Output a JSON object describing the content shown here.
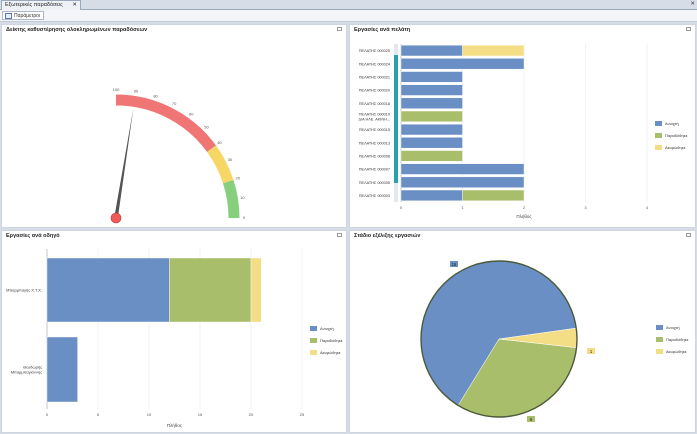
{
  "tab": {
    "title": "Εξωτερικές παραδόσεις",
    "close": "✕"
  },
  "toolbar": {
    "params_label": "Παράμετροι"
  },
  "gauge": {
    "title": "Δείκτης καθυστέρησης ολοκληρωμένων παραδόσεων",
    "ticks": [
      "100",
      "90",
      "80",
      "70",
      "60",
      "50",
      "40",
      "30",
      "20",
      "10",
      "0"
    ],
    "value": 90,
    "bands": [
      {
        "from": 0,
        "to": 20,
        "color": "#86cf7c"
      },
      {
        "from": 20,
        "to": 40,
        "color": "#f6d766"
      },
      {
        "from": 40,
        "to": 100,
        "color": "#f07575"
      }
    ]
  },
  "colors": {
    "open": "#6a8fc4",
    "delivered": "#a9be6a",
    "cancelled": "#f3de86"
  },
  "legend": [
    "Ανοιχτή",
    "Παραδόθηκε",
    "Ακυρώθηκε"
  ],
  "customers": {
    "title": "Εργασίες ανά πελάτη",
    "xlabel": "Πλήθος",
    "chart_data": {
      "type": "bar",
      "categories": [
        "ΠΕΛΑΤΗΣ 000025",
        "ΠΕΛΑΤΗΣ 000024",
        "ΠΕΛΑΤΗΣ 000021",
        "ΠΕΛΑΤΗΣ 000020",
        "ΠΕΛΑΤΗΣ 000018",
        "ΠΕΛΑΤΗΣ 000019 - ΔΙΑ ΗΛΕ. ΑΚΙΝΗ...",
        "ΠΕΛΑΤΗΣ 000015",
        "ΠΕΛΑΤΗΣ 000013",
        "ΠΕΛΑΤΗΣ 000008",
        "ΠΕΛΑΤΗΣ 000007",
        "ΠΕΛΑΤΗΣ 000005",
        "ΠΕΛΑΤΗΣ 000003"
      ],
      "series": [
        {
          "name": "Ανοιχτή",
          "values": [
            1,
            2,
            1,
            1,
            1,
            0,
            1,
            1,
            0,
            2,
            2,
            1
          ]
        },
        {
          "name": "Παραδόθηκε",
          "values": [
            0,
            0,
            0,
            0,
            0,
            1,
            0,
            0,
            1,
            0,
            0,
            1
          ]
        },
        {
          "name": "Ακυρώθηκε",
          "values": [
            1,
            0,
            0,
            0,
            0,
            0,
            0,
            0,
            0,
            0,
            0,
            0
          ]
        }
      ],
      "xticks": [
        "0",
        "1",
        "2",
        "3",
        "4"
      ],
      "xlim": [
        0,
        4
      ]
    }
  },
  "drivers": {
    "title": "Εργασίες ανά οδηγό",
    "xlabel": "Πλήθος",
    "chart_data": {
      "type": "bar",
      "categories": [
        "Μπαρμπαγής Χ.Τ.Χ.",
        "Θεοδωρής Μπαρμπαγιάννης"
      ],
      "series": [
        {
          "name": "Ανοιχτή",
          "values": [
            12,
            3
          ]
        },
        {
          "name": "Παραδόθηκε",
          "values": [
            8,
            0
          ]
        },
        {
          "name": "Ακυρώθηκε",
          "values": [
            1,
            0
          ]
        }
      ],
      "xticks": [
        "0",
        "5",
        "10",
        "15",
        "20",
        "25"
      ],
      "xlim": [
        0,
        25
      ]
    }
  },
  "stages": {
    "title": "Στάδιο εξέλιξης εργασιών",
    "chart_data": {
      "type": "pie",
      "labels": [
        "Ανοιχτή",
        "Παραδόθηκε",
        "Ακυρώθηκε"
      ],
      "values": [
        16,
        8,
        1
      ],
      "data_labels": [
        "16",
        "8",
        "1"
      ]
    }
  }
}
